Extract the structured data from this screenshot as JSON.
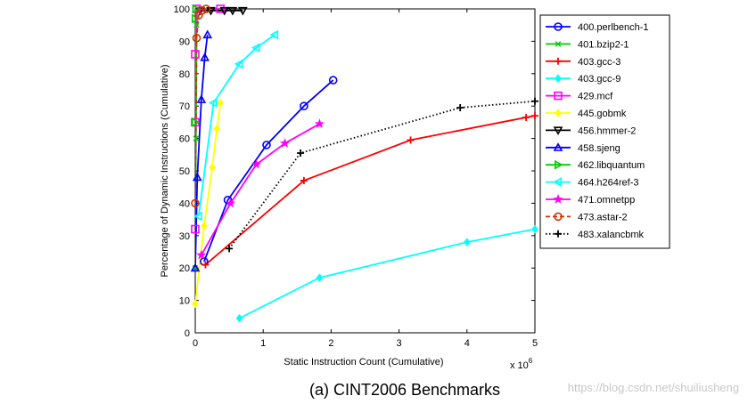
{
  "chart_data": {
    "type": "line",
    "title": "",
    "xlabel": "Static Instruction Count (Cumulative)",
    "x_scale_note_base": "x 10",
    "x_scale_note_exp": "6",
    "ylabel": "Percentage of Dynamic Instructions (Cumulative)",
    "xlim": [
      0,
      5
    ],
    "ylim": [
      0,
      100
    ],
    "xticks": [
      0,
      1,
      2,
      3,
      4,
      5
    ],
    "yticks": [
      0,
      10,
      20,
      30,
      40,
      50,
      60,
      70,
      80,
      90,
      100
    ],
    "legend_position": "right",
    "caption": "(a)    CINT2006 Benchmarks",
    "watermark": "https://blog.csdn.net/shuiliusheng",
    "series": [
      {
        "name": "400.perlbench-1",
        "color": "#0000ff",
        "marker": "circle",
        "dash": "solid",
        "x": [
          0.13,
          0.48,
          1.05,
          1.6,
          2.03
        ],
        "y": [
          22,
          41,
          58,
          70,
          78
        ]
      },
      {
        "name": "401.bzip2-1",
        "color": "#00cc00",
        "marker": "x",
        "dash": "solid",
        "x": [
          0.0,
          0.01,
          0.02,
          0.03
        ],
        "y": [
          20,
          60,
          95,
          100
        ]
      },
      {
        "name": "403.gcc-3",
        "color": "#ff0000",
        "marker": "plus",
        "dash": "solid",
        "x": [
          0.15,
          1.6,
          3.17,
          4.87,
          5.0
        ],
        "y": [
          21,
          47,
          59.5,
          66.5,
          67
        ]
      },
      {
        "name": "403.gcc-9",
        "color": "#00ffff",
        "marker": "diamond",
        "dash": "solid",
        "x": [
          0.65,
          1.83,
          4.0,
          5.0
        ],
        "y": [
          4.5,
          17,
          28,
          32
        ]
      },
      {
        "name": "429.mcf",
        "color": "#ff00ff",
        "marker": "square",
        "dash": "solid",
        "x": [
          0.0,
          0.0,
          0.0,
          0.02,
          0.37
        ],
        "y": [
          32,
          65,
          86,
          100,
          100
        ]
      },
      {
        "name": "445.gobmk",
        "color": "#ffff00",
        "marker": "diamond",
        "dash": "solid",
        "x": [
          0.0,
          0.13,
          0.25,
          0.32,
          0.37
        ],
        "y": [
          9,
          33,
          51,
          63,
          71
        ]
      },
      {
        "name": "456.hmmer-2",
        "color": "#000000",
        "marker": "triangle-down",
        "dash": "solid",
        "x": [
          0.07,
          0.23,
          0.43,
          0.55,
          0.7
        ],
        "y": [
          99.5,
          99.5,
          99.5,
          99.5,
          99.5
        ]
      },
      {
        "name": "458.sjeng",
        "color": "#0000ff",
        "marker": "triangle-up",
        "dash": "solid",
        "x": [
          0.0,
          0.03,
          0.09,
          0.14,
          0.18
        ],
        "y": [
          20,
          48,
          72,
          85,
          92
        ]
      },
      {
        "name": "462.libquantum",
        "color": "#00cc00",
        "marker": "triangle-right",
        "dash": "solid",
        "x": [
          0.0,
          0.0,
          0.01
        ],
        "y": [
          65,
          97,
          100
        ]
      },
      {
        "name": "464.h264ref-3",
        "color": "#00ffff",
        "marker": "triangle-left",
        "dash": "solid",
        "x": [
          0.05,
          0.27,
          0.65,
          0.9,
          1.17
        ],
        "y": [
          36,
          71,
          83,
          88,
          92
        ]
      },
      {
        "name": "471.omnetpp",
        "color": "#ff00ff",
        "marker": "star",
        "dash": "solid",
        "x": [
          0.09,
          0.52,
          0.9,
          1.32,
          1.83
        ],
        "y": [
          24,
          40,
          52,
          58.5,
          64.5
        ]
      },
      {
        "name": "473.astar-2",
        "color": "#cc3300",
        "marker": "circle",
        "dash": "dashed",
        "x": [
          0.0,
          0.02,
          0.05,
          0.1,
          0.16
        ],
        "y": [
          40,
          91,
          98,
          99.5,
          100
        ]
      },
      {
        "name": "483.xalancbmk",
        "color": "#000000",
        "marker": "plus",
        "dash": "dotted",
        "x": [
          0.5,
          1.55,
          3.9,
          5.0
        ],
        "y": [
          26,
          55.5,
          69.5,
          71.5
        ]
      }
    ]
  }
}
